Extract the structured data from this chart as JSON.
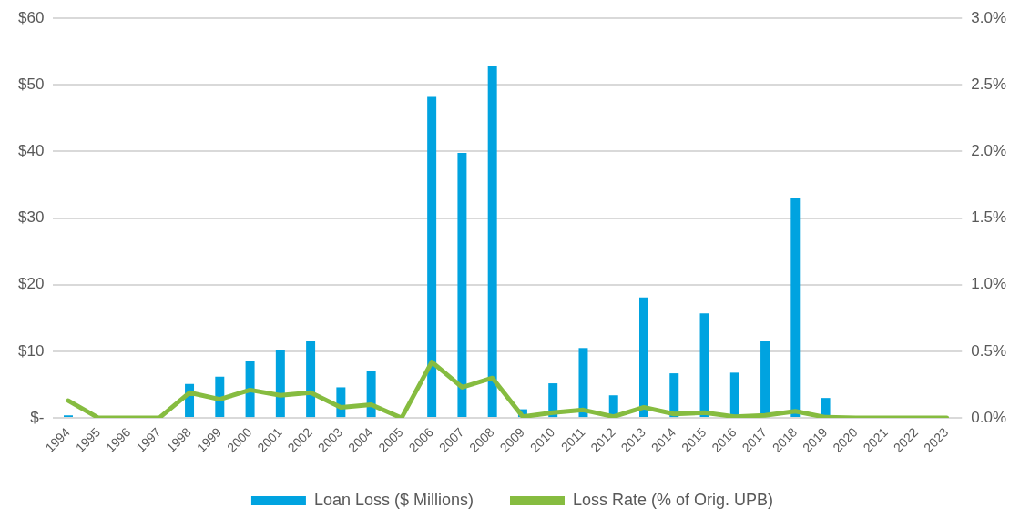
{
  "chart_data": {
    "type": "bar",
    "categories": [
      "1994",
      "1995",
      "1996",
      "1997",
      "1998",
      "1999",
      "2000",
      "2001",
      "2002",
      "2003",
      "2004",
      "2005",
      "2006",
      "2007",
      "2008",
      "2009",
      "2010",
      "2011",
      "2012",
      "2013",
      "2014",
      "2015",
      "2016",
      "2017",
      "2018",
      "2019",
      "2020",
      "2021",
      "2022",
      "2023"
    ],
    "series": [
      {
        "name": "Loan Loss ($ Millions)",
        "color": "#00a3e0",
        "values": [
          0.4,
          0,
          0,
          0,
          5.1,
          6.2,
          8.5,
          10.2,
          11.5,
          4.6,
          7.1,
          0,
          48.2,
          39.8,
          52.8,
          1.3,
          5.2,
          10.5,
          3.4,
          18.1,
          6.7,
          15.7,
          6.8,
          11.5,
          33.1,
          3.0,
          0,
          0,
          0,
          0
        ]
      },
      {
        "name": "Loss Rate (% of Orig. UPB)",
        "type": "line",
        "axis": "y2",
        "color": "#86bc40",
        "values": [
          0.13,
          0,
          0,
          0,
          0.19,
          0.14,
          0.21,
          0.17,
          0.19,
          0.08,
          0.1,
          0,
          0.42,
          0.23,
          0.3,
          0.01,
          0.04,
          0.06,
          0.01,
          0.08,
          0.03,
          0.04,
          0.01,
          0.02,
          0.05,
          0.005,
          0,
          0,
          0,
          0
        ]
      }
    ],
    "ylim": [
      0,
      60
    ],
    "yticks": [
      {
        "value": 0,
        "label": "$-"
      },
      {
        "value": 10,
        "label": "$10"
      },
      {
        "value": 20,
        "label": "$20"
      },
      {
        "value": 30,
        "label": "$30"
      },
      {
        "value": 40,
        "label": "$40"
      },
      {
        "value": 50,
        "label": "$50"
      },
      {
        "value": 60,
        "label": "$60"
      }
    ],
    "y2lim": [
      0,
      3
    ],
    "y2ticks": [
      {
        "value": 0,
        "label": "0.0%"
      },
      {
        "value": 0.5,
        "label": "0.5%"
      },
      {
        "value": 1,
        "label": "1.0%"
      },
      {
        "value": 1.5,
        "label": "1.5%"
      },
      {
        "value": 2,
        "label": "2.0%"
      },
      {
        "value": 2.5,
        "label": "2.5%"
      },
      {
        "value": 3,
        "label": "3.0%"
      }
    ],
    "grid": "y",
    "legend": "bottom",
    "marker": "none",
    "line_style": "solid"
  }
}
